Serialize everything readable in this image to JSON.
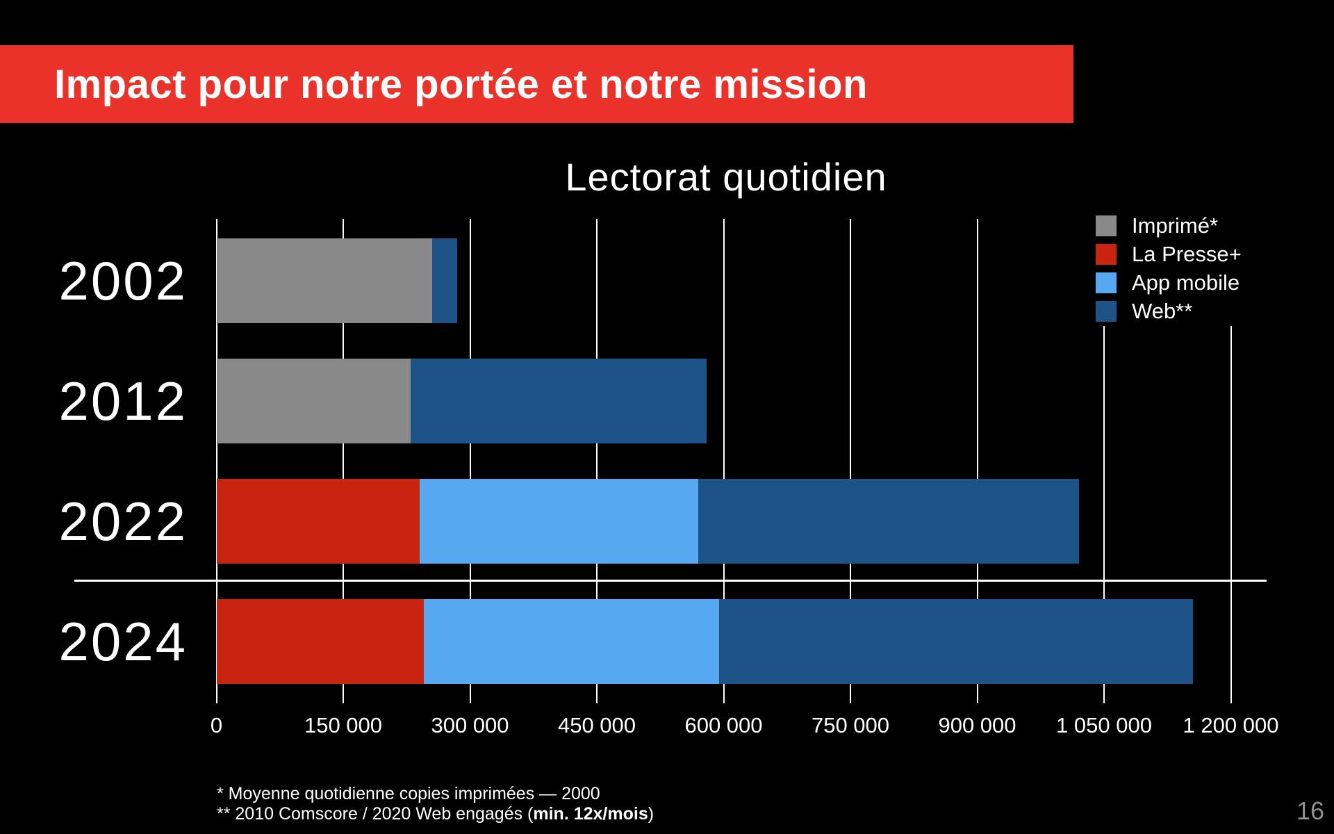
{
  "header": {
    "title": "Impact pour notre portée et notre mission"
  },
  "colors": {
    "background": "#000000",
    "banner_red": "#e8322a",
    "text": "#ffffff"
  },
  "chart_data": {
    "type": "bar",
    "orientation": "horizontal",
    "stacked": true,
    "title": "Lectorat quotidien",
    "categories": [
      "2002",
      "2012",
      "2022",
      "2024"
    ],
    "series": [
      {
        "name": "Imprimé*",
        "color": "#898989",
        "values": [
          255000,
          230000,
          0,
          0
        ]
      },
      {
        "name": "La Presse+",
        "color": "#c9240f",
        "values": [
          0,
          0,
          240000,
          245000
        ]
      },
      {
        "name": "App mobile",
        "color": "#56a8f1",
        "values": [
          0,
          0,
          330000,
          350000
        ]
      },
      {
        "name": "Web**",
        "color": "#1d5386",
        "values": [
          30000,
          350000,
          450000,
          560000
        ]
      }
    ],
    "totals": [
      285000,
      580000,
      1020000,
      1155000
    ],
    "xlim": [
      0,
      1200000
    ],
    "x_ticks": [
      0,
      150000,
      300000,
      450000,
      600000,
      750000,
      900000,
      1050000,
      1200000
    ],
    "x_tick_labels": [
      "0",
      "150 000",
      "300 000",
      "450 000",
      "600 000",
      "750 000",
      "900 000",
      "1 050 000",
      "1 200 000"
    ],
    "grid": "vertical",
    "legend_position": "top-right",
    "separator_between": [
      "2022",
      "2024"
    ]
  },
  "footnotes": {
    "line1": "* Moyenne quotidienne copies imprimées — 2000",
    "line2_prefix": "** 2010 Comscore / 2020 Web engagés (",
    "line2_bold": "min. 12x/mois",
    "line2_suffix": ")"
  },
  "page_number": "16"
}
